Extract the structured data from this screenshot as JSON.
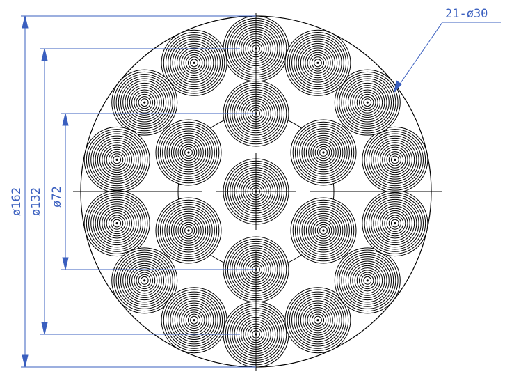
{
  "drawing": {
    "colors": {
      "dimension": "#3a5fbf",
      "geometry": "#000000",
      "background": "#ffffff"
    },
    "dimensions": {
      "outer_diameter": "ø162",
      "middle_pitch_diameter": "ø132",
      "inner_pitch_diameter": "ø72",
      "callout": "21-ø30"
    },
    "strand_count": 21
  }
}
